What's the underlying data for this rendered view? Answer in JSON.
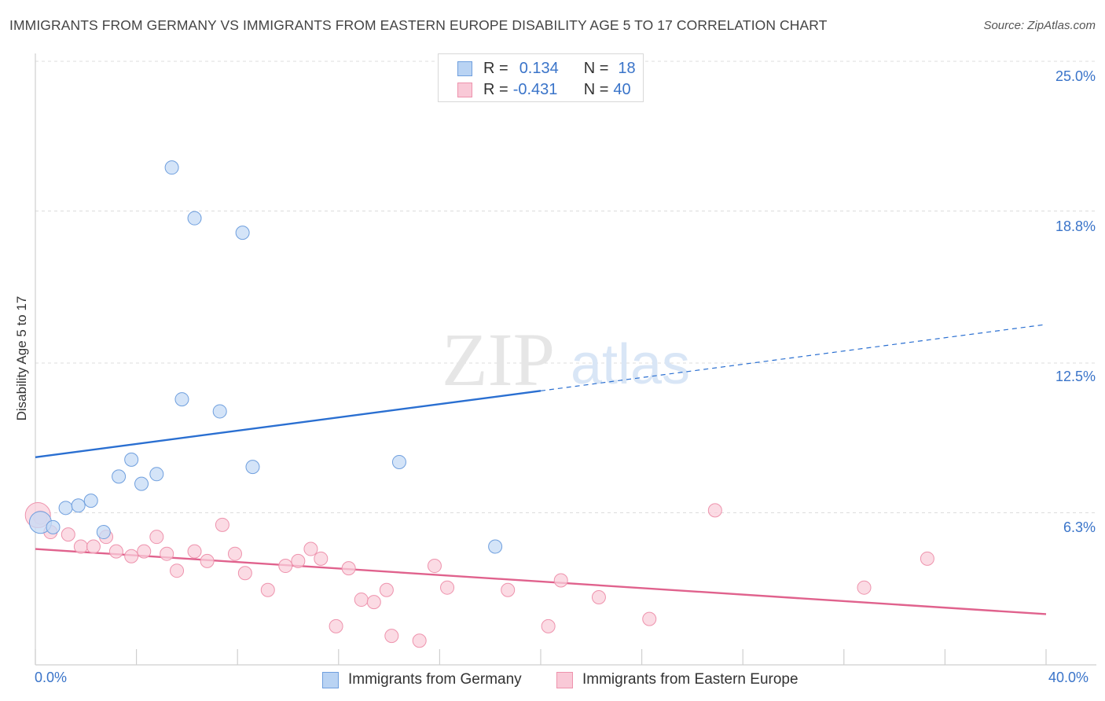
{
  "title": "IMMIGRANTS FROM GERMANY VS IMMIGRANTS FROM EASTERN EUROPE DISABILITY AGE 5 TO 17 CORRELATION CHART",
  "source": "Source: ZipAtlas.com",
  "watermark": {
    "zip": "ZIP",
    "atlas": "atlas"
  },
  "legend": {
    "rows": [
      {
        "r_label": "R =",
        "r_value": "0.134",
        "n_label": "N =",
        "n_value": "18",
        "color": "#6f9fde"
      },
      {
        "r_label": "R =",
        "r_value": "-0.431",
        "n_label": "N =",
        "n_value": "40",
        "color": "#ee93ad"
      }
    ]
  },
  "colors": {
    "germany": "#6f9fde",
    "germany_fill": "#c5dbf5",
    "eastern_europe": "#ee93ad",
    "eastern_europe_fill": "#f9cfdb",
    "germany_line": "#2a6fd1",
    "eastern_europe_line": "#e0628d",
    "axis_text": "#3a74c9"
  },
  "chart_data": {
    "type": "scatter",
    "ylabel": "Disability Age 5 to 17",
    "xlim": [
      0,
      40
    ],
    "ylim": [
      0,
      25
    ],
    "x_tick_labels": [
      "0.0%",
      "40.0%"
    ],
    "y_ticks": [
      6.3,
      12.5,
      18.8,
      25.0
    ],
    "y_tick_labels": [
      "6.3%",
      "12.5%",
      "18.8%",
      "25.0%"
    ],
    "grid": true,
    "series": [
      {
        "name": "Immigrants from Germany",
        "points": [
          [
            0.2,
            5.9
          ],
          [
            0.7,
            5.7
          ],
          [
            1.2,
            6.5
          ],
          [
            1.7,
            6.6
          ],
          [
            2.2,
            6.8
          ],
          [
            2.7,
            5.5
          ],
          [
            3.3,
            7.8
          ],
          [
            3.8,
            8.5
          ],
          [
            4.2,
            7.5
          ],
          [
            4.8,
            7.9
          ],
          [
            5.4,
            20.6
          ],
          [
            5.8,
            11.0
          ],
          [
            6.3,
            18.5
          ],
          [
            7.3,
            10.5
          ],
          [
            8.2,
            17.9
          ],
          [
            8.6,
            8.2
          ],
          [
            14.4,
            8.4
          ],
          [
            18.2,
            4.9
          ]
        ],
        "trend": {
          "x": [
            0,
            40
          ],
          "y": [
            8.6,
            14.1
          ],
          "solid_until": 20
        }
      },
      {
        "name": "Immigrants from Eastern Europe",
        "points": [
          [
            0.2,
            6.1
          ],
          [
            0.6,
            5.5
          ],
          [
            1.3,
            5.4
          ],
          [
            1.8,
            4.9
          ],
          [
            2.3,
            4.9
          ],
          [
            2.8,
            5.3
          ],
          [
            3.2,
            4.7
          ],
          [
            3.8,
            4.5
          ],
          [
            4.3,
            4.7
          ],
          [
            4.8,
            5.3
          ],
          [
            5.2,
            4.6
          ],
          [
            5.6,
            3.9
          ],
          [
            6.3,
            4.7
          ],
          [
            6.8,
            4.3
          ],
          [
            7.4,
            5.8
          ],
          [
            7.9,
            4.6
          ],
          [
            8.3,
            3.8
          ],
          [
            9.2,
            3.1
          ],
          [
            9.9,
            4.1
          ],
          [
            10.4,
            4.3
          ],
          [
            10.9,
            4.8
          ],
          [
            11.3,
            4.4
          ],
          [
            11.9,
            1.6
          ],
          [
            12.4,
            4.0
          ],
          [
            12.9,
            2.7
          ],
          [
            13.4,
            2.6
          ],
          [
            13.9,
            3.1
          ],
          [
            14.1,
            1.2
          ],
          [
            15.2,
            1.0
          ],
          [
            15.8,
            4.1
          ],
          [
            16.3,
            3.2
          ],
          [
            18.7,
            3.1
          ],
          [
            20.3,
            1.6
          ],
          [
            20.8,
            3.5
          ],
          [
            22.3,
            2.8
          ],
          [
            24.3,
            1.9
          ],
          [
            26.9,
            6.4
          ],
          [
            32.8,
            3.2
          ],
          [
            35.3,
            4.4
          ],
          [
            0.1,
            6.2
          ]
        ],
        "trend": {
          "x": [
            0,
            40
          ],
          "y": [
            4.8,
            2.1
          ]
        }
      }
    ]
  }
}
